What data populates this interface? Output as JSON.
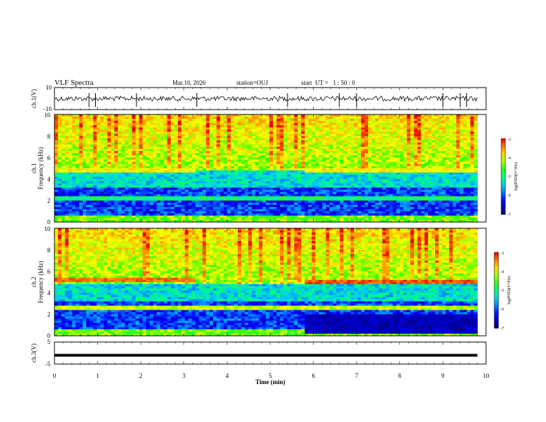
{
  "title": "VLF Spectra",
  "header": {
    "date": "Mar.10, 2026",
    "station": "station=OUJ",
    "start_ut": "start  UT =   1 : 50 : 0"
  },
  "chart_data": [
    {
      "type": "line",
      "name": "ch1-waveform",
      "ylabel": "ch.1(V)",
      "ylim": [
        -10,
        10
      ],
      "yticks": [
        "10",
        "-10"
      ],
      "xlim": [
        0,
        10
      ]
    },
    {
      "type": "heatmap",
      "name": "ch1-spectrogram",
      "ylabel": "ch.1",
      "ylabel2": "Frequency (kHz)",
      "ylim": [
        0,
        10
      ],
      "yticks": [
        "10",
        "8",
        "6",
        "4",
        "2",
        "0"
      ],
      "xlim": [
        0,
        10
      ],
      "colorbar": {
        "label": "log(PSD)(V²/Hz)",
        "ticks": [
          "-3",
          "-4",
          "-5",
          "-6",
          "-7"
        ],
        "range": [
          -7,
          -3
        ]
      }
    },
    {
      "type": "heatmap",
      "name": "ch2-spectrogram",
      "ylabel": "ch.2",
      "ylabel2": "Frequency (kHz)",
      "ylim": [
        0,
        10
      ],
      "yticks": [
        "10",
        "8",
        "6",
        "4",
        "2",
        "0"
      ],
      "xlim": [
        0,
        10
      ],
      "colorbar": {
        "label": "log(PSD)(V²/Hz)",
        "ticks": [
          "-3",
          "-4",
          "-5",
          "-6",
          "-7"
        ],
        "range": [
          -7,
          -3
        ]
      }
    },
    {
      "type": "line",
      "name": "ch3-waveform",
      "ylabel": "ch.3(V)",
      "ylim": [
        -5,
        5
      ],
      "yticks": [
        "5",
        "-5"
      ],
      "x": [
        0,
        9.8
      ],
      "y": [
        -1,
        -1
      ],
      "xlim": [
        0,
        10
      ]
    }
  ],
  "xaxis": {
    "label": "Time (min)",
    "ticks": [
      "0",
      "1",
      "2",
      "3",
      "4",
      "5",
      "6",
      "7",
      "8",
      "9",
      "10"
    ]
  },
  "colors": {
    "dark_blue": "#00008b",
    "blue": "#0000ff",
    "cyan": "#00ffff",
    "green": "#00ff00",
    "yellow": "#ffff00",
    "red": "#ff0000"
  }
}
